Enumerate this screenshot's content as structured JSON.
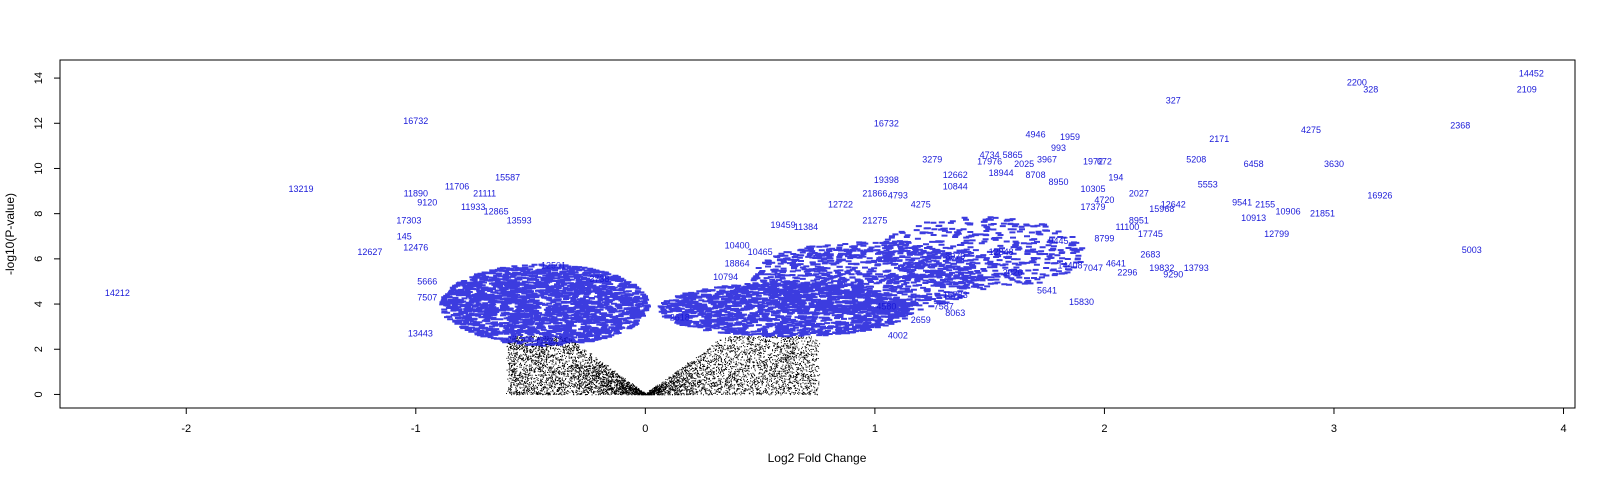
{
  "chart_data": {
    "type": "scatter",
    "title": "",
    "xlabel": "Log2 Fold Change",
    "ylabel": "-log10(P-value)",
    "xlim": [
      -2.55,
      4.05
    ],
    "ylim": [
      -0.6,
      14.8
    ],
    "x_ticks": [
      -2,
      -1,
      0,
      1,
      2,
      3,
      4
    ],
    "y_ticks": [
      0,
      2,
      4,
      6,
      8,
      10,
      12,
      14
    ],
    "grid": false,
    "legend": "none",
    "colors": {
      "significant_labels": "#1a1ad9",
      "non_significant_points": "#000000",
      "axes": "#000000"
    },
    "background_cloud": {
      "description_points": "dense black points forming a V shape around x=0, y from 0 to about 2.5",
      "color": "#000000"
    },
    "labeled_points": [
      {
        "x": 3.86,
        "y": 14.2,
        "label": "14452"
      },
      {
        "x": 3.84,
        "y": 13.5,
        "label": "2109"
      },
      {
        "x": 3.1,
        "y": 13.8,
        "label": "2200"
      },
      {
        "x": 3.16,
        "y": 13.5,
        "label": "328"
      },
      {
        "x": 2.3,
        "y": 13.0,
        "label": "327"
      },
      {
        "x": 3.55,
        "y": 11.9,
        "label": "2368"
      },
      {
        "x": 2.9,
        "y": 11.7,
        "label": "4275"
      },
      {
        "x": 2.5,
        "y": 11.3,
        "label": "2171"
      },
      {
        "x": 3.0,
        "y": 10.2,
        "label": "3630"
      },
      {
        "x": 2.65,
        "y": 10.2,
        "label": "6458"
      },
      {
        "x": 2.4,
        "y": 10.4,
        "label": "5208"
      },
      {
        "x": 2.45,
        "y": 9.3,
        "label": "5553"
      },
      {
        "x": 3.2,
        "y": 8.8,
        "label": "16926"
      },
      {
        "x": 2.6,
        "y": 8.5,
        "label": "9541"
      },
      {
        "x": 2.7,
        "y": 8.4,
        "label": "2155"
      },
      {
        "x": 2.8,
        "y": 8.1,
        "label": "10906"
      },
      {
        "x": 2.95,
        "y": 8.0,
        "label": "21851"
      },
      {
        "x": 2.65,
        "y": 7.8,
        "label": "10913"
      },
      {
        "x": 2.75,
        "y": 7.1,
        "label": "12799"
      },
      {
        "x": 3.6,
        "y": 6.4,
        "label": "5003"
      },
      {
        "x": -1.0,
        "y": 12.1,
        "label": "16732"
      },
      {
        "x": -1.5,
        "y": 9.1,
        "label": "13219"
      },
      {
        "x": -2.3,
        "y": 4.5,
        "label": "14212"
      },
      {
        "x": -1.2,
        "y": 6.3,
        "label": "12627"
      },
      {
        "x": -0.6,
        "y": 9.6,
        "label": "15587"
      },
      {
        "x": -0.82,
        "y": 9.2,
        "label": "11706"
      },
      {
        "x": -1.0,
        "y": 8.9,
        "label": "11890"
      },
      {
        "x": -0.95,
        "y": 8.5,
        "label": "9120"
      },
      {
        "x": -1.03,
        "y": 7.7,
        "label": "17303"
      },
      {
        "x": -1.0,
        "y": 6.5,
        "label": "12476"
      },
      {
        "x": -1.05,
        "y": 7.0,
        "label": "145"
      },
      {
        "x": -0.95,
        "y": 5.0,
        "label": "5666"
      },
      {
        "x": -0.95,
        "y": 4.3,
        "label": "7507"
      },
      {
        "x": -0.98,
        "y": 2.7,
        "label": "13443"
      },
      {
        "x": 1.05,
        "y": 12.0,
        "label": "16732"
      },
      {
        "x": 1.7,
        "y": 11.5,
        "label": "4946"
      },
      {
        "x": 1.85,
        "y": 11.4,
        "label": "1959"
      },
      {
        "x": 1.8,
        "y": 10.9,
        "label": "993"
      },
      {
        "x": 1.5,
        "y": 10.6,
        "label": "4734"
      },
      {
        "x": 1.6,
        "y": 10.6,
        "label": "5865"
      },
      {
        "x": 1.5,
        "y": 10.3,
        "label": "17976"
      },
      {
        "x": 1.65,
        "y": 10.2,
        "label": "2025"
      },
      {
        "x": 1.75,
        "y": 10.4,
        "label": "3967"
      },
      {
        "x": 1.95,
        "y": 10.3,
        "label": "1972"
      },
      {
        "x": 2.0,
        "y": 10.3,
        "label": "672"
      },
      {
        "x": 1.25,
        "y": 10.4,
        "label": "3279"
      },
      {
        "x": 1.35,
        "y": 9.7,
        "label": "12662"
      },
      {
        "x": 1.55,
        "y": 9.8,
        "label": "18944"
      },
      {
        "x": 1.7,
        "y": 9.7,
        "label": "8708"
      },
      {
        "x": 1.05,
        "y": 9.5,
        "label": "19398"
      },
      {
        "x": 1.35,
        "y": 9.2,
        "label": "10844"
      },
      {
        "x": 1.8,
        "y": 9.4,
        "label": "8950"
      },
      {
        "x": 1.95,
        "y": 9.1,
        "label": "10305"
      },
      {
        "x": 2.05,
        "y": 9.6,
        "label": "194"
      },
      {
        "x": 2.15,
        "y": 8.9,
        "label": "2027"
      },
      {
        "x": 2.3,
        "y": 8.4,
        "label": "12642"
      },
      {
        "x": 2.25,
        "y": 8.2,
        "label": "15968"
      },
      {
        "x": 2.15,
        "y": 7.7,
        "label": "8951"
      },
      {
        "x": 2.0,
        "y": 8.6,
        "label": "4720"
      },
      {
        "x": 1.95,
        "y": 8.3,
        "label": "17379"
      },
      {
        "x": 2.1,
        "y": 7.4,
        "label": "11100"
      },
      {
        "x": 2.2,
        "y": 7.1,
        "label": "17745"
      },
      {
        "x": 1.0,
        "y": 8.9,
        "label": "21866"
      },
      {
        "x": 1.1,
        "y": 8.8,
        "label": "4793"
      },
      {
        "x": 0.85,
        "y": 8.4,
        "label": "12722"
      },
      {
        "x": 1.0,
        "y": 7.7,
        "label": "21275"
      },
      {
        "x": 1.2,
        "y": 8.4,
        "label": "4275"
      },
      {
        "x": 0.6,
        "y": 7.5,
        "label": "19459"
      },
      {
        "x": 0.7,
        "y": 7.4,
        "label": "11384"
      },
      {
        "x": 0.4,
        "y": 6.6,
        "label": "10400"
      },
      {
        "x": 0.5,
        "y": 6.3,
        "label": "10465"
      },
      {
        "x": 0.4,
        "y": 5.8,
        "label": "18864"
      },
      {
        "x": 1.35,
        "y": 6.1,
        "label": "8979"
      },
      {
        "x": 1.55,
        "y": 6.3,
        "label": "12848"
      },
      {
        "x": 1.8,
        "y": 6.8,
        "label": "9445"
      },
      {
        "x": 2.0,
        "y": 6.9,
        "label": "8799"
      },
      {
        "x": 2.2,
        "y": 6.2,
        "label": "2683"
      },
      {
        "x": 2.05,
        "y": 5.8,
        "label": "4641"
      },
      {
        "x": 1.95,
        "y": 5.6,
        "label": "7047"
      },
      {
        "x": 2.1,
        "y": 5.4,
        "label": "2296"
      },
      {
        "x": 2.25,
        "y": 5.6,
        "label": "19832"
      },
      {
        "x": 2.4,
        "y": 5.6,
        "label": "13793"
      },
      {
        "x": 2.3,
        "y": 5.3,
        "label": "9290"
      },
      {
        "x": 1.85,
        "y": 5.7,
        "label": "14408"
      },
      {
        "x": 1.6,
        "y": 5.4,
        "label": "2026"
      },
      {
        "x": 1.75,
        "y": 4.6,
        "label": "5641"
      },
      {
        "x": 1.9,
        "y": 4.1,
        "label": "15830"
      },
      {
        "x": 1.35,
        "y": 4.4,
        "label": "15733"
      },
      {
        "x": 1.35,
        "y": 3.6,
        "label": "8063"
      },
      {
        "x": 1.3,
        "y": 3.9,
        "label": "7587"
      },
      {
        "x": 1.05,
        "y": 3.9,
        "label": "4580"
      },
      {
        "x": 1.2,
        "y": 3.3,
        "label": "2659"
      },
      {
        "x": 1.1,
        "y": 2.6,
        "label": "4002"
      },
      {
        "x": 0.35,
        "y": 5.2,
        "label": "10794"
      },
      {
        "x": 0.15,
        "y": 3.4,
        "label": "2618"
      },
      {
        "x": -0.2,
        "y": 5.1,
        "label": "3738"
      },
      {
        "x": -0.4,
        "y": 5.7,
        "label": "12501"
      },
      {
        "x": -0.55,
        "y": 7.7,
        "label": "13593"
      },
      {
        "x": -0.7,
        "y": 8.9,
        "label": "21111"
      },
      {
        "x": -0.65,
        "y": 8.1,
        "label": "12865"
      },
      {
        "x": -0.75,
        "y": 8.3,
        "label": "11933"
      }
    ]
  }
}
